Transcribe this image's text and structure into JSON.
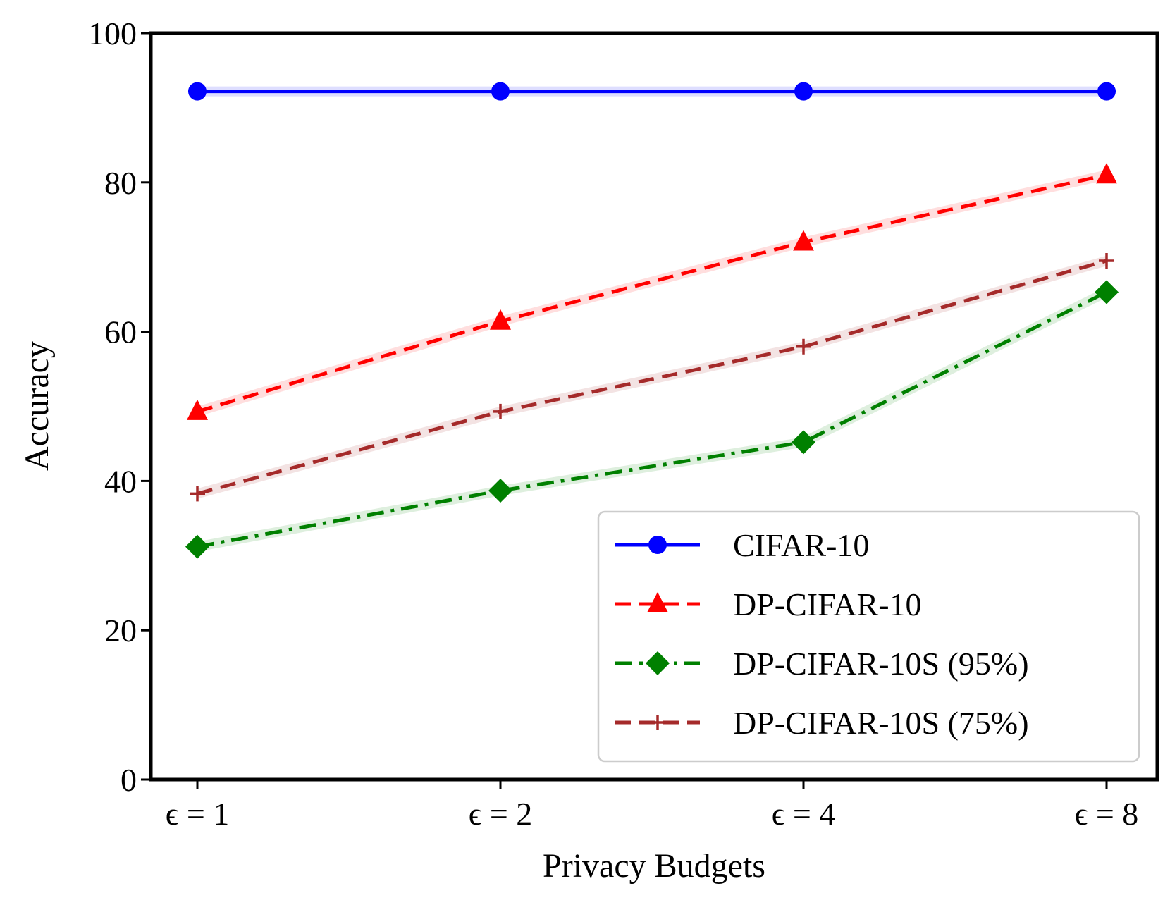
{
  "chart_data": {
    "type": "line",
    "title": "",
    "xlabel": "Privacy Budgets",
    "ylabel": "Accuracy",
    "categories": [
      "ϵ = 1",
      "ϵ = 2",
      "ϵ = 4",
      "ϵ = 8"
    ],
    "ylim": [
      0,
      100
    ],
    "yticks": [
      "0",
      "20",
      "40",
      "60",
      "80",
      "100"
    ],
    "grid": false,
    "legend_position": "lower-right",
    "series": [
      {
        "name": "CIFAR-10",
        "values": [
          92.2,
          92.2,
          92.2,
          92.2
        ],
        "color": "#0000ff",
        "marker": "circle",
        "line_style": "solid"
      },
      {
        "name": "DP-CIFAR-10",
        "values": [
          49.3,
          61.4,
          72.0,
          81.0
        ],
        "color": "#ff0000",
        "marker": "triangle",
        "line_style": "dashed"
      },
      {
        "name": "DP-CIFAR-10S (95%)",
        "values": [
          31.2,
          38.7,
          45.2,
          65.3
        ],
        "color": "#008000",
        "marker": "diamond",
        "line_style": "dashdot"
      },
      {
        "name": "DP-CIFAR-10S (75%)",
        "values": [
          38.3,
          49.3,
          58.0,
          69.5
        ],
        "color": "#a52a2a",
        "marker": "plus",
        "line_style": "dashed"
      }
    ]
  }
}
